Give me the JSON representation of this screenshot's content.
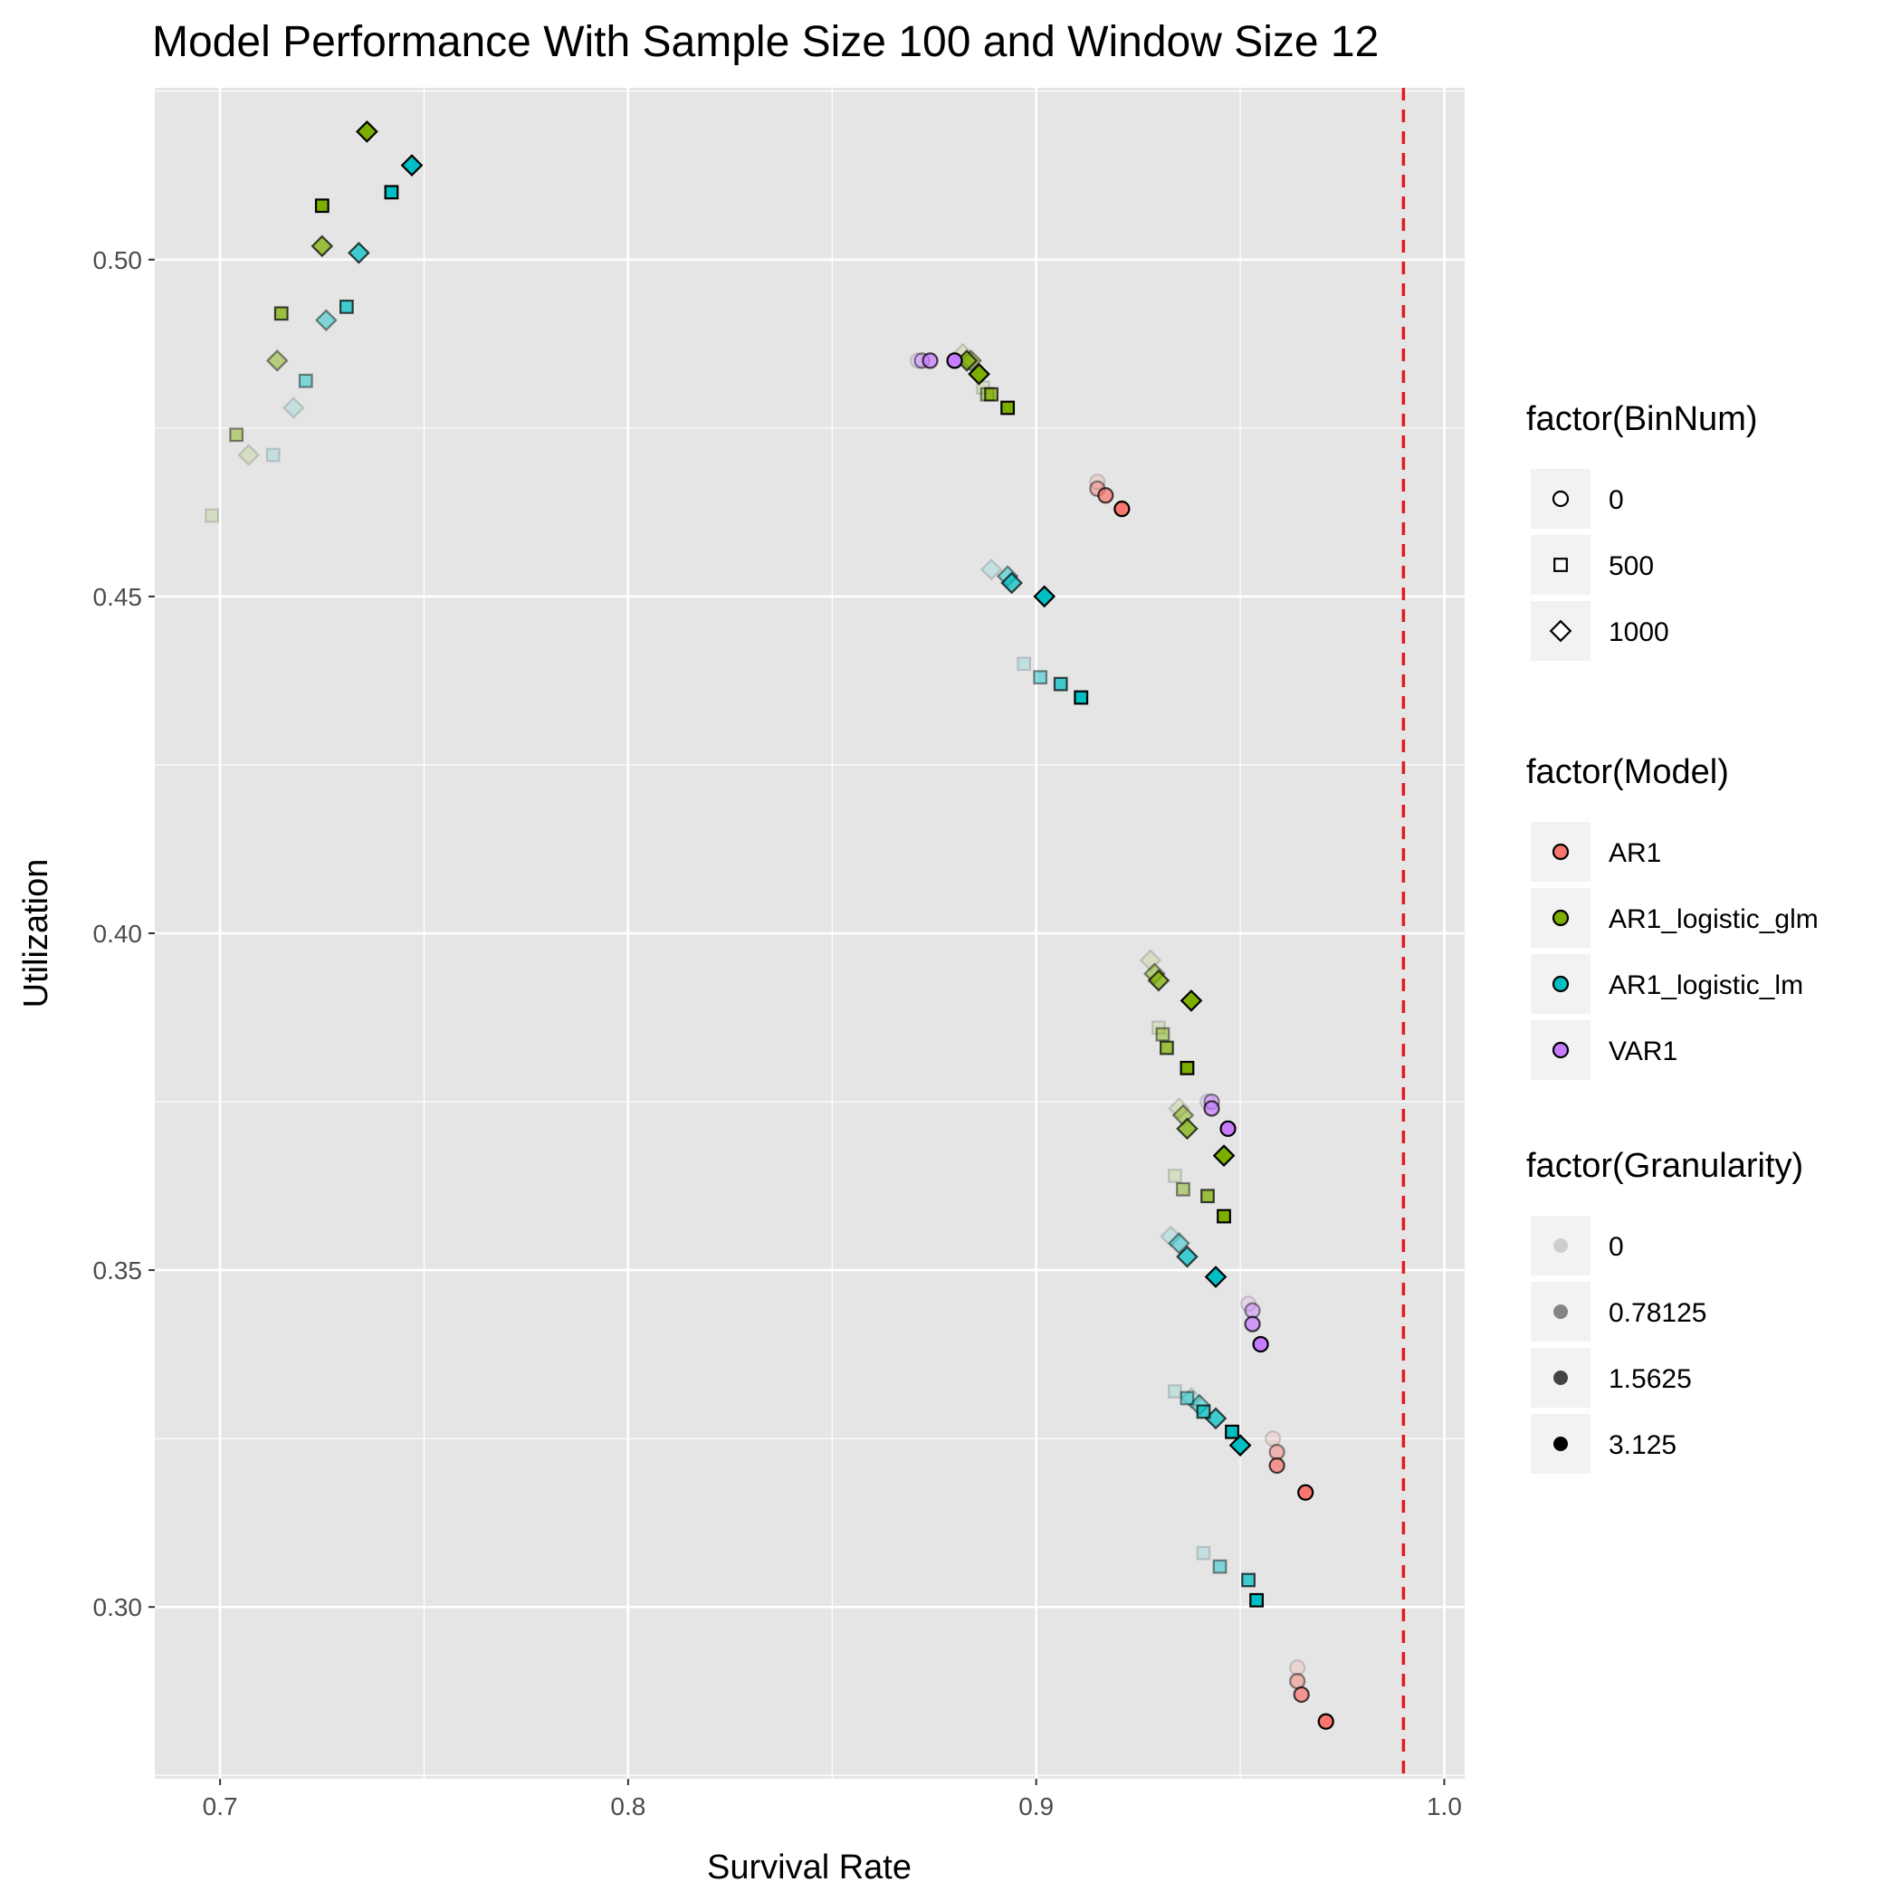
{
  "chart_data": {
    "type": "scatter",
    "title": "Model Performance With Sample Size 100 and Window Size 12",
    "xlabel": "Survival Rate",
    "ylabel": "Utilization",
    "xlim": [
      0.684,
      1.005
    ],
    "ylim": [
      0.2745,
      0.5255
    ],
    "x_ticks": [
      0.7,
      0.8,
      0.9,
      1.0
    ],
    "x_tick_labels": [
      "0.7",
      "0.8",
      "0.9",
      "1.0"
    ],
    "y_ticks": [
      0.3,
      0.35,
      0.4,
      0.45,
      0.5
    ],
    "y_tick_labels": [
      "0.30",
      "0.35",
      "0.40",
      "0.45",
      "0.50"
    ],
    "grid": true,
    "reference_line": {
      "x": 0.99,
      "color": "#e41a1c",
      "style": "dashed"
    },
    "colors": {
      "AR1": "#f8766d",
      "AR1_logistic_glm": "#7cae00",
      "AR1_logistic_lm": "#00bfc4",
      "VAR1": "#c77cff",
      "panel_background": "#e5e5e5",
      "grid": "#ffffff"
    },
    "legends": [
      {
        "title": "factor(BinNum)",
        "kind": "shape",
        "entries": [
          {
            "label": "0",
            "shape": "circle"
          },
          {
            "label": "500",
            "shape": "square"
          },
          {
            "label": "1000",
            "shape": "diamond"
          }
        ]
      },
      {
        "title": "factor(Model)",
        "kind": "color",
        "entries": [
          {
            "label": "AR1",
            "color": "#f8766d"
          },
          {
            "label": "AR1_logistic_glm",
            "color": "#7cae00"
          },
          {
            "label": "AR1_logistic_lm",
            "color": "#00bfc4"
          },
          {
            "label": "VAR1",
            "color": "#c77cff"
          }
        ]
      },
      {
        "title": "factor(Granularity)",
        "kind": "alpha",
        "entries": [
          {
            "label": "0",
            "alpha": 0.15
          },
          {
            "label": "0.78125",
            "alpha": 0.45
          },
          {
            "label": "1.5625",
            "alpha": 0.72
          },
          {
            "label": "3.125",
            "alpha": 1.0
          }
        ]
      }
    ],
    "legend_position": "right",
    "series": [
      {
        "model": "AR1_logistic_glm",
        "binnum": "1000",
        "points": [
          [
            0.707,
            0.471,
            "0"
          ],
          [
            0.714,
            0.485,
            "0.78125"
          ],
          [
            0.725,
            0.502,
            "1.5625"
          ],
          [
            0.736,
            0.519,
            "3.125"
          ],
          [
            0.882,
            0.486,
            "0"
          ],
          [
            0.884,
            0.485,
            "0.78125"
          ],
          [
            0.883,
            0.485,
            "1.5625"
          ],
          [
            0.886,
            0.483,
            "3.125"
          ],
          [
            0.928,
            0.396,
            "0"
          ],
          [
            0.929,
            0.394,
            "0.78125"
          ],
          [
            0.93,
            0.393,
            "1.5625"
          ],
          [
            0.938,
            0.39,
            "3.125"
          ],
          [
            0.935,
            0.374,
            "0"
          ],
          [
            0.936,
            0.373,
            "0.78125"
          ],
          [
            0.937,
            0.371,
            "1.5625"
          ],
          [
            0.946,
            0.367,
            "3.125"
          ]
        ]
      },
      {
        "model": "AR1_logistic_glm",
        "binnum": "500",
        "points": [
          [
            0.698,
            0.462,
            "0"
          ],
          [
            0.704,
            0.474,
            "0.78125"
          ],
          [
            0.715,
            0.492,
            "1.5625"
          ],
          [
            0.725,
            0.508,
            "3.125"
          ],
          [
            0.887,
            0.481,
            "0"
          ],
          [
            0.888,
            0.48,
            "0.78125"
          ],
          [
            0.889,
            0.48,
            "1.5625"
          ],
          [
            0.893,
            0.478,
            "3.125"
          ],
          [
            0.93,
            0.386,
            "0"
          ],
          [
            0.931,
            0.385,
            "0.78125"
          ],
          [
            0.932,
            0.383,
            "1.5625"
          ],
          [
            0.937,
            0.38,
            "3.125"
          ],
          [
            0.934,
            0.364,
            "0"
          ],
          [
            0.936,
            0.362,
            "0.78125"
          ],
          [
            0.942,
            0.361,
            "1.5625"
          ],
          [
            0.946,
            0.358,
            "3.125"
          ]
        ]
      },
      {
        "model": "AR1_logistic_lm",
        "binnum": "1000",
        "points": [
          [
            0.718,
            0.478,
            "0"
          ],
          [
            0.726,
            0.491,
            "0.78125"
          ],
          [
            0.734,
            0.501,
            "1.5625"
          ],
          [
            0.747,
            0.514,
            "3.125"
          ],
          [
            0.889,
            0.454,
            "0"
          ],
          [
            0.893,
            0.453,
            "0.78125"
          ],
          [
            0.894,
            0.452,
            "1.5625"
          ],
          [
            0.902,
            0.45,
            "3.125"
          ],
          [
            0.933,
            0.355,
            "0"
          ],
          [
            0.935,
            0.354,
            "0.78125"
          ],
          [
            0.937,
            0.352,
            "1.5625"
          ],
          [
            0.944,
            0.349,
            "3.125"
          ],
          [
            0.938,
            0.331,
            "0"
          ],
          [
            0.94,
            0.33,
            "0.78125"
          ],
          [
            0.944,
            0.328,
            "1.5625"
          ],
          [
            0.95,
            0.324,
            "3.125"
          ]
        ]
      },
      {
        "model": "AR1_logistic_lm",
        "binnum": "500",
        "points": [
          [
            0.713,
            0.471,
            "0"
          ],
          [
            0.721,
            0.482,
            "0.78125"
          ],
          [
            0.731,
            0.493,
            "1.5625"
          ],
          [
            0.742,
            0.51,
            "3.125"
          ],
          [
            0.897,
            0.44,
            "0"
          ],
          [
            0.901,
            0.438,
            "0.78125"
          ],
          [
            0.906,
            0.437,
            "1.5625"
          ],
          [
            0.911,
            0.435,
            "3.125"
          ],
          [
            0.934,
            0.332,
            "0"
          ],
          [
            0.937,
            0.331,
            "0.78125"
          ],
          [
            0.941,
            0.329,
            "1.5625"
          ],
          [
            0.948,
            0.326,
            "3.125"
          ],
          [
            0.941,
            0.308,
            "0"
          ],
          [
            0.945,
            0.306,
            "0.78125"
          ],
          [
            0.952,
            0.304,
            "1.5625"
          ],
          [
            0.954,
            0.301,
            "3.125"
          ]
        ]
      },
      {
        "model": "VAR1",
        "binnum": "0",
        "points": [
          [
            0.871,
            0.485,
            "0"
          ],
          [
            0.872,
            0.485,
            "0.78125"
          ],
          [
            0.874,
            0.485,
            "1.5625"
          ],
          [
            0.88,
            0.485,
            "3.125"
          ],
          [
            0.942,
            0.375,
            "0"
          ],
          [
            0.943,
            0.375,
            "0.78125"
          ],
          [
            0.943,
            0.374,
            "1.5625"
          ],
          [
            0.947,
            0.371,
            "3.125"
          ],
          [
            0.952,
            0.345,
            "0"
          ],
          [
            0.953,
            0.344,
            "0.78125"
          ],
          [
            0.953,
            0.342,
            "1.5625"
          ],
          [
            0.955,
            0.339,
            "3.125"
          ]
        ]
      },
      {
        "model": "AR1",
        "binnum": "0",
        "points": [
          [
            0.915,
            0.467,
            "0"
          ],
          [
            0.915,
            0.466,
            "0.78125"
          ],
          [
            0.917,
            0.465,
            "1.5625"
          ],
          [
            0.921,
            0.463,
            "3.125"
          ],
          [
            0.958,
            0.325,
            "0"
          ],
          [
            0.959,
            0.323,
            "0.78125"
          ],
          [
            0.959,
            0.321,
            "1.5625"
          ],
          [
            0.966,
            0.317,
            "3.125"
          ],
          [
            0.964,
            0.291,
            "0"
          ],
          [
            0.964,
            0.289,
            "0.78125"
          ],
          [
            0.965,
            0.287,
            "1.5625"
          ],
          [
            0.971,
            0.283,
            "3.125"
          ]
        ]
      }
    ]
  }
}
